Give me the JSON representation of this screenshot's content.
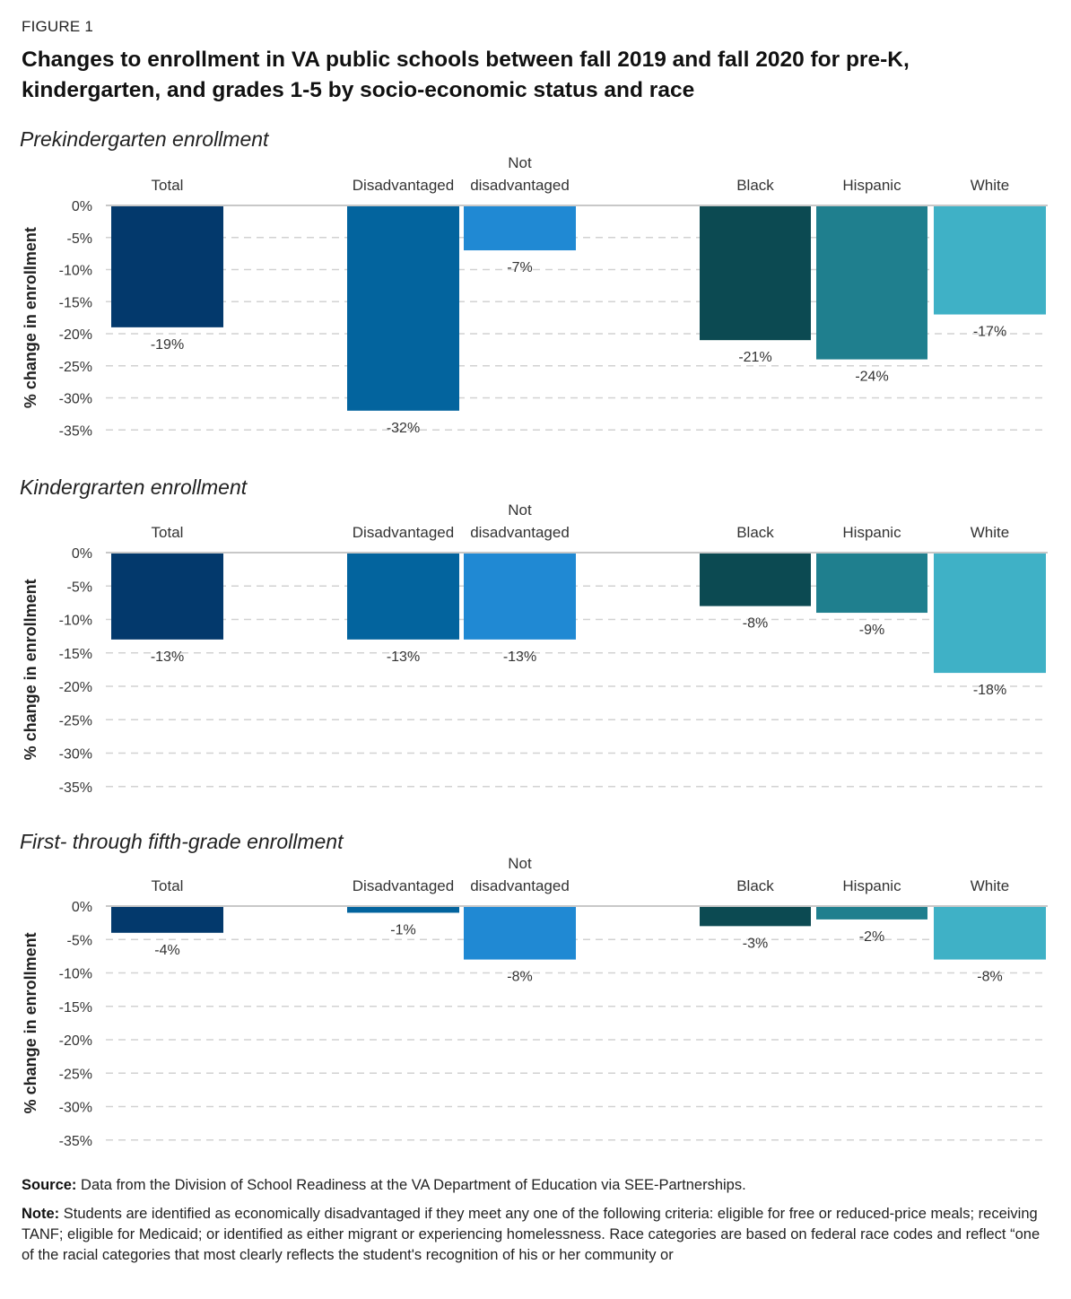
{
  "figure_label": "FIGURE 1",
  "title": "Changes to enrollment in VA public schools between fall 2019 and fall 2020 for pre-K, kindergarten, and grades 1-5 by socio-economic status and race",
  "colors": {
    "Total": "#03396c",
    "Disadvantaged": "#03649e",
    "Not disadvantaged": "#2089d3",
    "Black": "#0c4a52",
    "Hispanic": "#1f7f8e",
    "White": "#3fb1c6"
  },
  "chart_data": [
    {
      "type": "bar",
      "title": "Prekindergarten enrollment",
      "xlabel": "",
      "ylabel": "% change in enrollment",
      "ylim": [
        -35,
        0
      ],
      "yticks": [
        "0%",
        "-5%",
        "-10%",
        "-15%",
        "-20%",
        "-25%",
        "-30%",
        "-35%"
      ],
      "grid": true,
      "categories": [
        "Total",
        "Disadvantaged",
        "Not disadvantaged",
        "Black",
        "Hispanic",
        "White"
      ],
      "category_labels": [
        [
          "Total"
        ],
        [
          "Disadvantaged"
        ],
        [
          "Not",
          "disadvantaged"
        ],
        [
          "Black"
        ],
        [
          "Hispanic"
        ],
        [
          "White"
        ]
      ],
      "values": [
        -19,
        -32,
        -7,
        -21,
        -24,
        -17
      ],
      "data_labels": [
        "-19%",
        "-32%",
        "-7%",
        "-21%",
        "-24%",
        "-17%"
      ]
    },
    {
      "type": "bar",
      "title": "Kindergrarten enrollment",
      "xlabel": "",
      "ylabel": "% change in enrollment",
      "ylim": [
        -35,
        0
      ],
      "yticks": [
        "0%",
        "-5%",
        "-10%",
        "-15%",
        "-20%",
        "-25%",
        "-30%",
        "-35%"
      ],
      "grid": true,
      "categories": [
        "Total",
        "Disadvantaged",
        "Not disadvantaged",
        "Black",
        "Hispanic",
        "White"
      ],
      "category_labels": [
        [
          "Total"
        ],
        [
          "Disadvantaged"
        ],
        [
          "Not",
          "disadvantaged"
        ],
        [
          "Black"
        ],
        [
          "Hispanic"
        ],
        [
          "White"
        ]
      ],
      "values": [
        -13,
        -13,
        -13,
        -8,
        -9,
        -18
      ],
      "data_labels": [
        "-13%",
        "-13%",
        "-13%",
        "-8%",
        "-9%",
        "-18%"
      ]
    },
    {
      "type": "bar",
      "title": "First- through fifth-grade enrollment",
      "xlabel": "",
      "ylabel": "% change in enrollment",
      "ylim": [
        -35,
        0
      ],
      "yticks": [
        "0%",
        "-5%",
        "-10%",
        "-15%",
        "-20%",
        "-25%",
        "-30%",
        "-35%"
      ],
      "grid": true,
      "categories": [
        "Total",
        "Disadvantaged",
        "Not disadvantaged",
        "Black",
        "Hispanic",
        "White"
      ],
      "category_labels": [
        [
          "Total"
        ],
        [
          "Disadvantaged"
        ],
        [
          "Not",
          "disadvantaged"
        ],
        [
          "Black"
        ],
        [
          "Hispanic"
        ],
        [
          "White"
        ]
      ],
      "values": [
        -4,
        -1,
        -8,
        -3,
        -2,
        -8
      ],
      "data_labels": [
        "-4%",
        "-1%",
        "-8%",
        "-3%",
        "-2%",
        "-8%"
      ]
    }
  ],
  "footer": {
    "source_label": "Source:",
    "source_text": " Data from the Division of School Readiness at the VA Department of Education via SEE-Partnerships.",
    "note_label": "Note:",
    "note_text": " Students are identified as economically disadvantaged if they meet any one of the following criteria: eligible for free or reduced-price meals; receiving TANF; eligible for Medicaid; or identified as either migrant or experiencing homelessness. Race categories are based on federal race codes and reflect “one of the racial categories that most clearly reflects the student's recognition of his or her community or"
  }
}
